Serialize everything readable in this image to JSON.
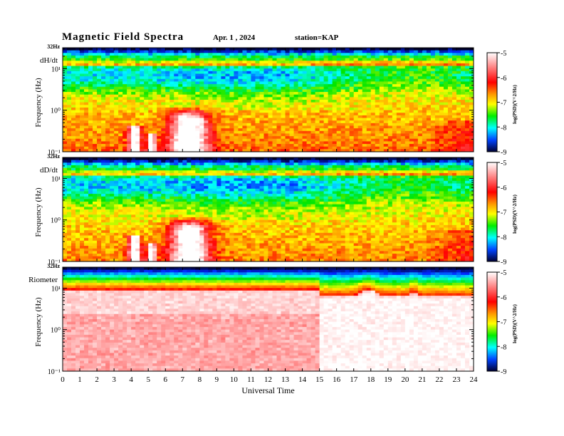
{
  "header": {
    "title": "Magnetic  Field  Spectra",
    "date": "Apr. 1  , 2024",
    "station": "station=KAP"
  },
  "chart_data": [
    {
      "type": "heatmap",
      "panel_label": "dH/dt",
      "ylabel": "Frequency  (Hz)",
      "top_label": "32Hz",
      "y_scale": "log",
      "ylim": [
        0.1,
        32
      ],
      "y_ticks": [
        "10⁻¹",
        "10⁰",
        "10¹"
      ],
      "x_ticks": [
        0,
        1,
        2,
        3,
        4,
        5,
        6,
        7,
        8,
        9,
        10,
        11,
        12,
        13,
        14,
        15,
        16,
        17,
        18,
        19,
        20,
        21,
        22,
        23,
        24
      ],
      "colorbar": {
        "label": "log(PSD)(V^2/Hz)",
        "ticks": [
          "-5",
          "-6",
          "-7",
          "-8",
          "-9"
        ],
        "range": [
          -9,
          -5
        ]
      },
      "features": {
        "ulf_enhancement_hours": [
          3.8,
          9.0
        ],
        "spectral_line_hz": [
          6.5,
          9.0
        ]
      }
    },
    {
      "type": "heatmap",
      "panel_label": "dD/dt",
      "ylabel": "Frequency  (Hz)",
      "top_label": "32Hz",
      "y_scale": "log",
      "ylim": [
        0.1,
        32
      ],
      "y_ticks": [
        "10⁻¹",
        "10⁰",
        "10¹"
      ],
      "x_ticks": [
        0,
        1,
        2,
        3,
        4,
        5,
        6,
        7,
        8,
        9,
        10,
        11,
        12,
        13,
        14,
        15,
        16,
        17,
        18,
        19,
        20,
        21,
        22,
        23,
        24
      ],
      "colorbar": {
        "label": "log(PSD)(V^2/Hz)",
        "ticks": [
          "-5",
          "-6",
          "-7",
          "-8",
          "-9"
        ],
        "range": [
          -9,
          -5
        ]
      },
      "features": {
        "ulf_enhancement_hours": [
          3.8,
          9.0
        ],
        "spectral_line_hz": [
          6.5,
          9.0
        ]
      }
    },
    {
      "type": "heatmap",
      "panel_label": "Riometer",
      "ylabel": "Frequency  (Hz)",
      "top_label": "32Hz",
      "y_scale": "log",
      "ylim": [
        0.1,
        32
      ],
      "y_ticks": [
        "10⁻¹",
        "10⁰",
        "10¹"
      ],
      "x_ticks": [
        0,
        1,
        2,
        3,
        4,
        5,
        6,
        7,
        8,
        9,
        10,
        11,
        12,
        13,
        14,
        15,
        16,
        17,
        18,
        19,
        20,
        21,
        22,
        23,
        24
      ],
      "xlabel": "Universal  Time",
      "colorbar": {
        "label": "log(PSD)(V^2/Hz)",
        "ticks": [
          "-5",
          "-6",
          "-7",
          "-8",
          "-9"
        ],
        "range": [
          -9,
          -5
        ]
      },
      "features": {
        "quiet_interval_hours": [
          14.9,
          24
        ]
      }
    }
  ]
}
